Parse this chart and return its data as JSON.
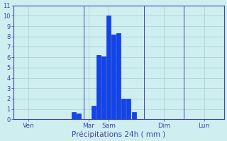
{
  "title": "Précipitations 24h ( mm )",
  "background_color": "#ceeef0",
  "bar_color": "#1144ee",
  "bar_edge_color": "#0022aa",
  "grid_color": "#aacece",
  "axis_color": "#4444aa",
  "tick_color": "#4444aa",
  "ylabel_values": [
    0,
    1,
    2,
    3,
    4,
    5,
    6,
    7,
    8,
    9,
    10,
    11
  ],
  "ylim": [
    0,
    11
  ],
  "bar_positions": [
    12,
    13,
    16,
    17,
    18,
    19,
    20,
    21,
    22,
    23,
    24
  ],
  "bar_heights": [
    0.7,
    0.6,
    1.3,
    6.2,
    6.1,
    10.0,
    8.2,
    8.3,
    2.0,
    2.0,
    0.7
  ],
  "day_labels": [
    "Ven",
    "Mar",
    "Sam",
    "Dim",
    "Lun"
  ],
  "day_tick_positions": [
    3,
    15,
    19,
    30,
    38
  ],
  "day_vline_positions": [
    0,
    14,
    26,
    34,
    42
  ],
  "xlim": [
    0,
    42
  ],
  "bar_width": 0.85
}
